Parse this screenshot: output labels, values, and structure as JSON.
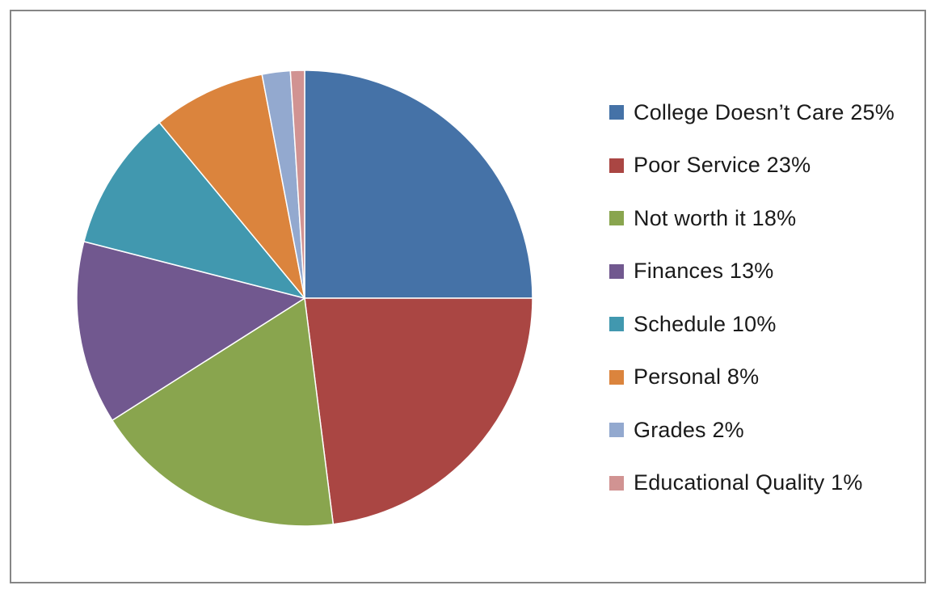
{
  "chart_data": {
    "type": "pie",
    "title": "",
    "legend_position": "right",
    "slices": [
      {
        "label": "College Doesn’t Care 25%",
        "value": 25,
        "color": "#4572A7"
      },
      {
        "label": "Poor Service 23%",
        "value": 23,
        "color": "#AA4643"
      },
      {
        "label": "Not worth it 18%",
        "value": 18,
        "color": "#89A54E"
      },
      {
        "label": "Finances 13%",
        "value": 13,
        "color": "#71588F"
      },
      {
        "label": "Schedule 10%",
        "value": 10,
        "color": "#4198AF"
      },
      {
        "label": "Personal 8%",
        "value": 8,
        "color": "#DB843D"
      },
      {
        "label": "Grades 2%",
        "value": 2,
        "color": "#93A9CF"
      },
      {
        "label": "Educational Quality 1%",
        "value": 1,
        "color": "#D19392"
      }
    ]
  }
}
